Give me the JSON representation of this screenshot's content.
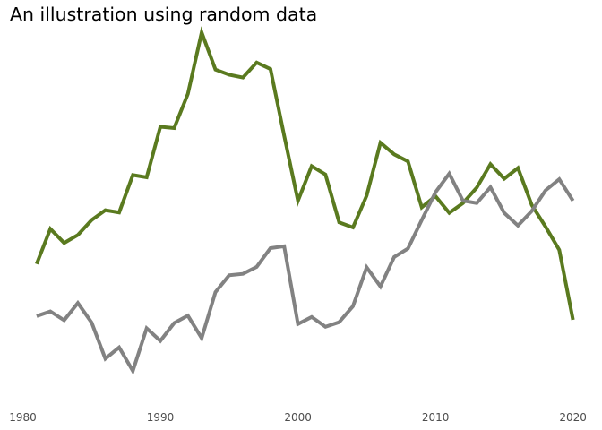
{
  "chart_data": {
    "type": "line",
    "title": "An illustration using random data",
    "xlabel": "",
    "ylabel": "",
    "x_ticks": [
      "1980",
      "1990",
      "2000",
      "2010",
      "2020"
    ],
    "xlim": [
      1980,
      2021
    ],
    "ylim": [
      -2.2,
      5.6
    ],
    "grid": false,
    "legend": "none",
    "x": [
      1981,
      1982,
      1983,
      1984,
      1985,
      1986,
      1987,
      1988,
      1989,
      1990,
      1991,
      1992,
      1993,
      1994,
      1995,
      1996,
      1997,
      1998,
      1999,
      2000,
      2001,
      2002,
      2003,
      2004,
      2005,
      2006,
      2007,
      2008,
      2009,
      2010,
      2011,
      2012,
      2013,
      2014,
      2015,
      2016,
      2017,
      2018,
      2019,
      2020
    ],
    "series": [
      {
        "color": "#5a7a1f",
        "values": [
          0.73,
          1.48,
          1.18,
          1.35,
          1.67,
          1.88,
          1.83,
          2.63,
          2.58,
          3.66,
          3.63,
          4.36,
          5.67,
          4.88,
          4.77,
          4.71,
          5.03,
          4.89,
          3.47,
          2.08,
          2.82,
          2.64,
          1.62,
          1.51,
          2.19,
          3.32,
          3.07,
          2.92,
          1.94,
          2.18,
          1.82,
          2.03,
          2.36,
          2.86,
          2.55,
          2.78,
          1.99,
          1.53,
          1.03,
          -0.46
        ]
      },
      {
        "color": "#828282",
        "values": [
          -0.38,
          -0.28,
          -0.47,
          -0.1,
          -0.52,
          -1.29,
          -1.05,
          -1.55,
          -0.64,
          -0.91,
          -0.53,
          -0.37,
          -0.85,
          0.13,
          0.49,
          0.52,
          0.67,
          1.07,
          1.11,
          -0.55,
          -0.4,
          -0.61,
          -0.51,
          -0.17,
          0.66,
          0.25,
          0.88,
          1.06,
          1.67,
          2.26,
          2.66,
          2.08,
          2.03,
          2.37,
          1.82,
          1.55,
          1.86,
          2.3,
          2.54,
          2.08
        ]
      }
    ]
  }
}
